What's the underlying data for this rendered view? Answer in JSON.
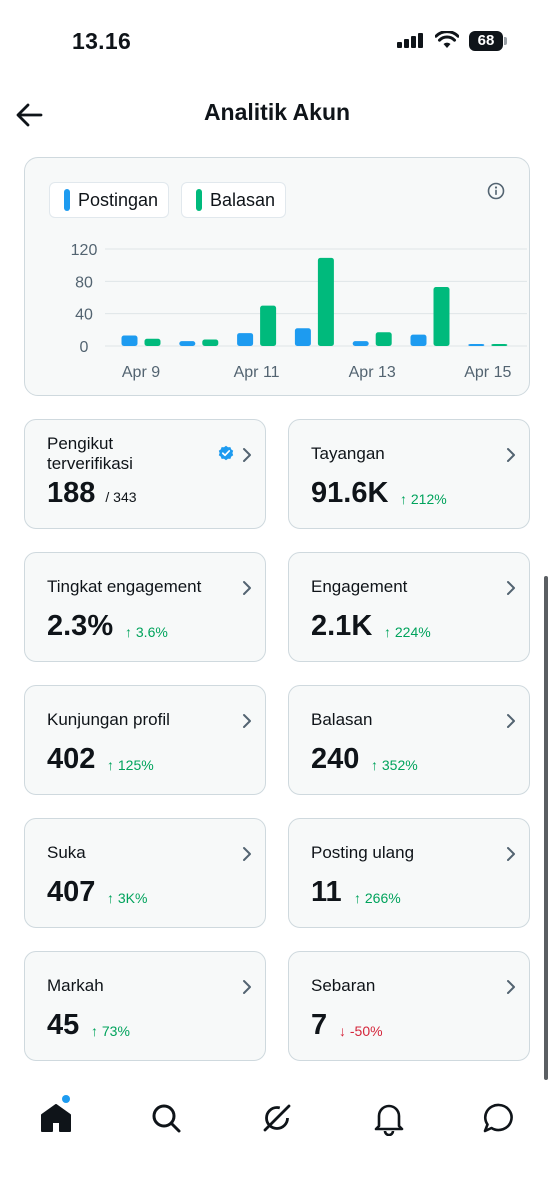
{
  "status_bar": {
    "time": "13.16",
    "battery": "68"
  },
  "header": {
    "title": "Analitik Akun"
  },
  "chart": {
    "legend": [
      {
        "label": "Postingan",
        "color": "#1d9bf0"
      },
      {
        "label": "Balasan",
        "color": "#00ba7c"
      }
    ]
  },
  "chart_data": {
    "type": "bar",
    "categories": [
      "Apr 9",
      "Apr 10",
      "Apr 11",
      "Apr 12",
      "Apr 13",
      "Apr 14",
      "Apr 15"
    ],
    "x_tick_labels": [
      "Apr 9",
      "Apr 11",
      "Apr 13",
      "Apr 15"
    ],
    "y_ticks": [
      "120",
      "80",
      "40",
      "0"
    ],
    "ylim": [
      0,
      120
    ],
    "grid": true,
    "legend_position": "top-left",
    "series": [
      {
        "name": "Postingan",
        "color": "#1d9bf0",
        "values": [
          13,
          6,
          16,
          22,
          6,
          14,
          1
        ]
      },
      {
        "name": "Balasan",
        "color": "#00ba7c",
        "values": [
          9,
          8,
          50,
          109,
          17,
          73,
          2
        ]
      }
    ]
  },
  "stats": [
    {
      "label": "Pengikut terverifikasi",
      "value": "188",
      "sub": "/ 343",
      "change": "",
      "direction": "none",
      "verified": true
    },
    {
      "label": "Tayangan",
      "value": "91.6K",
      "change": "212%",
      "direction": "up"
    },
    {
      "label": "Tingkat engagement",
      "value": "2.3%",
      "change": "3.6%",
      "direction": "up"
    },
    {
      "label": "Engagement",
      "value": "2.1K",
      "change": "224%",
      "direction": "up"
    },
    {
      "label": "Kunjungan profil",
      "value": "402",
      "change": "125%",
      "direction": "up"
    },
    {
      "label": "Balasan",
      "value": "240",
      "change": "352%",
      "direction": "up"
    },
    {
      "label": "Suka",
      "value": "407",
      "change": "3K%",
      "direction": "up"
    },
    {
      "label": "Posting ulang",
      "value": "11",
      "change": "266%",
      "direction": "up"
    },
    {
      "label": "Markah",
      "value": "45",
      "change": "73%",
      "direction": "up"
    },
    {
      "label": "Sebaran",
      "value": "7",
      "change": "-50%",
      "direction": "down"
    }
  ],
  "bottom_nav": {
    "items": [
      "home-icon",
      "search-icon",
      "grok-icon",
      "notifications-icon",
      "messages-icon"
    ]
  },
  "arrows": {
    "up": "↑",
    "down": "↓"
  }
}
